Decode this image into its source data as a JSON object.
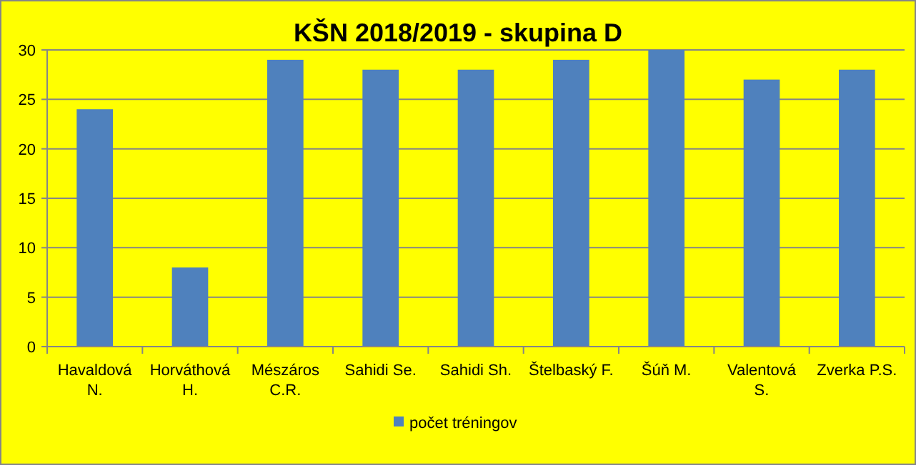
{
  "chart_data": {
    "type": "bar",
    "title": "KŠN 2018/2019 - skupina D",
    "categories": [
      "Havaldová N.",
      "Horváthová H.",
      "Mészáros C.R.",
      "Sahidi Se.",
      "Sahidi Sh.",
      "Štelbaský F.",
      "Šúň M.",
      "Valentová S.",
      "Zverka P.S."
    ],
    "series": [
      {
        "name": "počet tréningov",
        "color": "#4f81bd",
        "values": [
          24,
          8,
          29,
          28,
          28,
          29,
          30,
          27,
          28
        ]
      }
    ],
    "ylim": [
      0,
      30
    ],
    "yticks": [
      0,
      5,
      10,
      15,
      20,
      25,
      30
    ],
    "grid": "y",
    "legend": "bottom"
  }
}
